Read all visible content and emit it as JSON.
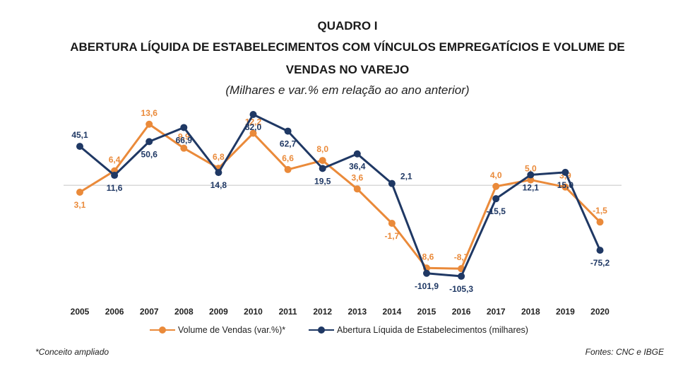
{
  "header": {
    "title": "QUADRO I",
    "line1": "ABERTURA LÍQUIDA DE ESTABELECIMENTOS COM VÍNCULOS EMPREGATÍCIOS E VOLUME DE",
    "line2": "VENDAS NO VAREJO",
    "subtitle": "(Milhares e var.% em relação ao ano anterior)"
  },
  "chart_data": {
    "type": "line",
    "title": "ABERTURA LÍQUIDA DE ESTABELECIMENTOS COM VÍNCULOS EMPREGATÍCIOS E VOLUME DE VENDAS NO VAREJO",
    "subtitle": "(Milhares e var.% em relação ao ano anterior)",
    "categories": [
      "2005",
      "2006",
      "2007",
      "2008",
      "2009",
      "2010",
      "2011",
      "2012",
      "2013",
      "2014",
      "2015",
      "2016",
      "2017",
      "2018",
      "2019",
      "2020"
    ],
    "xlabel": "",
    "ylabel": "",
    "grid": false,
    "legend_position": "bottom",
    "series": [
      {
        "name": "Volume de Vendas (var.%)*",
        "axis": "right",
        "color": "#ea8a3a",
        "values": [
          3.1,
          6.4,
          13.6,
          9.9,
          6.8,
          12.2,
          6.6,
          8.0,
          3.6,
          -1.7,
          -8.6,
          -8.7,
          4.0,
          5.0,
          3.9,
          -1.5
        ],
        "labels": [
          "3,1",
          "6,4",
          "13,6",
          "9,9",
          "6,8",
          "12,2",
          "6,6",
          "8,0",
          "3,6",
          "-1,7",
          "-8,6",
          "-8,7",
          "4,0",
          "5,0",
          "3,9",
          "-1,5"
        ],
        "label_pos": [
          "below",
          "above",
          "above",
          "above",
          "above",
          "above",
          "above",
          "above",
          "above",
          "below",
          "above",
          "above",
          "above",
          "above",
          "above",
          "above"
        ]
      },
      {
        "name": "Abertura Líquida de Estabelecimentos (milhares)",
        "axis": "left",
        "color": "#1f3864",
        "values": [
          45.1,
          11.6,
          50.6,
          66.9,
          14.8,
          82.0,
          62.7,
          19.5,
          36.4,
          2.1,
          -101.9,
          -105.3,
          -15.5,
          12.1,
          15.0,
          -75.2
        ],
        "labels": [
          "45,1",
          "11,6",
          "50,6",
          "66,9",
          "14,8",
          "82,0",
          "62,7",
          "19,5",
          "36,4",
          "2,1",
          "-101,9",
          "-105,3",
          "-15,5",
          "12,1",
          "15,0",
          "-75,2"
        ],
        "label_pos": [
          "above",
          "below",
          "below",
          "below",
          "below",
          "below",
          "below",
          "below",
          "below",
          "right",
          "below",
          "below",
          "below",
          "below",
          "below",
          "below"
        ]
      }
    ],
    "ylim_left": [
      -125,
      100
    ],
    "ylim_right": [
      -12.5,
      17.5
    ]
  },
  "footer": {
    "note": "*Conceito ampliado",
    "source": "Fontes: CNC e IBGE"
  }
}
